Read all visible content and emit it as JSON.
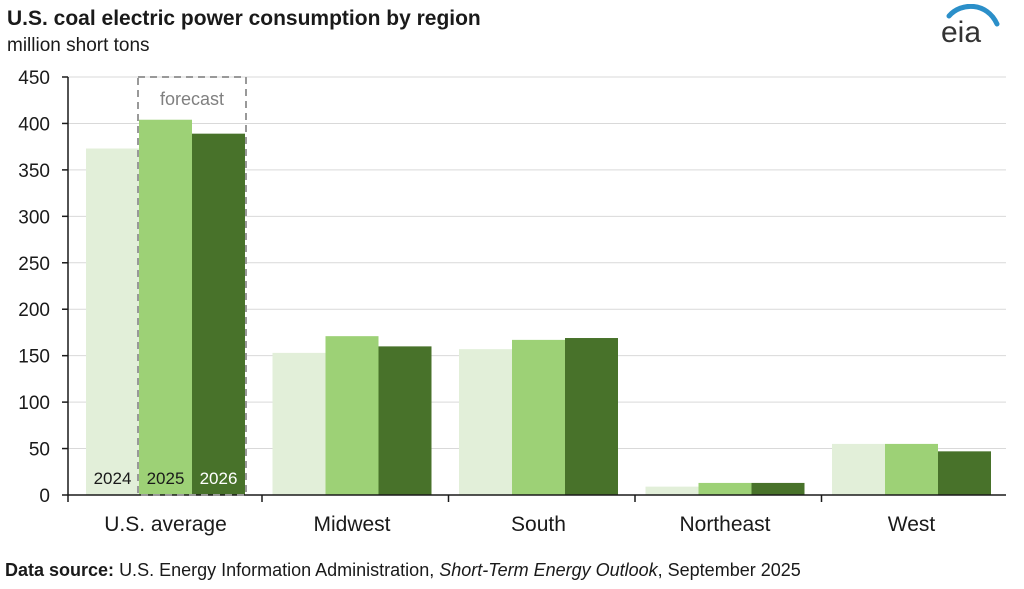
{
  "header": {
    "title": "U.S. coal electric power consumption by region",
    "subtitle": "million  short tons",
    "logo_text": "eia"
  },
  "source": {
    "label": "Data source:",
    "text_before": "U.S. Energy Information Administration,",
    "publication": "Short-Term Energy Outlook",
    "text_after": ", September 2025"
  },
  "chart_data": {
    "type": "bar",
    "categories": [
      "U.S. average",
      "Midwest",
      "South",
      "Northeast",
      "West"
    ],
    "series": [
      {
        "name": "2024",
        "color": "#e2efd9",
        "values": [
          373,
          153,
          157,
          9,
          55
        ]
      },
      {
        "name": "2025",
        "color": "#9dd176",
        "values": [
          404,
          171,
          167,
          13,
          55
        ]
      },
      {
        "name": "2026",
        "color": "#48722a",
        "values": [
          389,
          160,
          169,
          13,
          47
        ]
      }
    ],
    "ylim": [
      0,
      450
    ],
    "yticks": [
      "0",
      "50",
      "100",
      "150",
      "200",
      "250",
      "300",
      "350",
      "400",
      "450"
    ],
    "grid": true,
    "annotation": "forecast",
    "legend": "series labels printed inside the U.S. average bars"
  }
}
